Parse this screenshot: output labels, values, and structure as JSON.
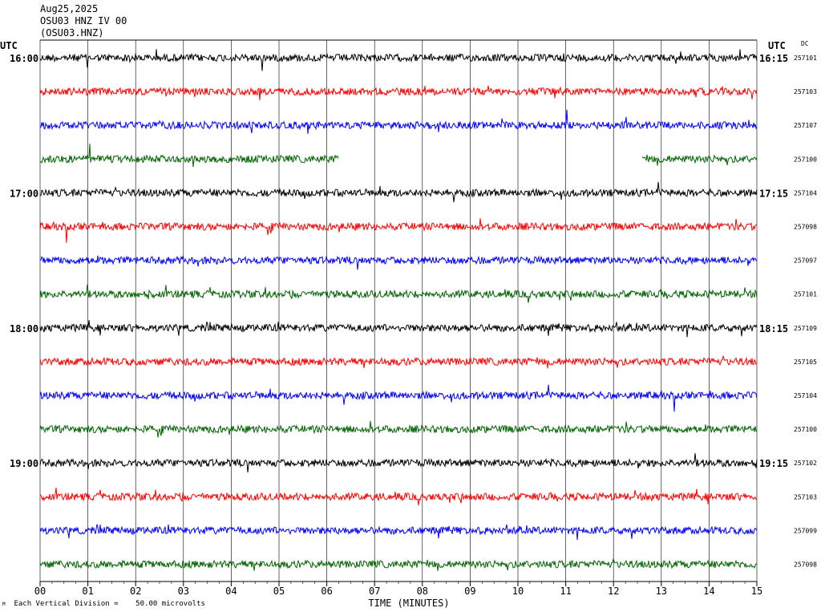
{
  "header": {
    "date": "Aug25,2025",
    "station_line": "OSU03 HNZ IV 00",
    "station_code": "(OSU03.HNZ)"
  },
  "footer": {
    "scale_note": "Each Vertical Division =    50.00 microvolts",
    "corner_mark": "M"
  },
  "chart_data": {
    "type": "line",
    "title": "",
    "xlabel": "TIME (MINUTES)",
    "ylabel": "",
    "left_axis_title": "UTC",
    "right_axis_title": "UTC",
    "dc_header": "DC",
    "x_ticks": [
      "00",
      "01",
      "02",
      "03",
      "04",
      "05",
      "06",
      "07",
      "08",
      "09",
      "10",
      "11",
      "12",
      "13",
      "14",
      "15"
    ],
    "xlim": [
      0,
      15
    ],
    "grid": "vertical",
    "colors": [
      "#000000",
      "#ff0000",
      "#0000ff",
      "#006400"
    ],
    "left_time_labels": [
      "16:00",
      "17:00",
      "18:00",
      "19:00"
    ],
    "right_time_labels": [
      "16:15",
      "17:15",
      "18:15",
      "19:15"
    ],
    "time_label_every": 4,
    "traces": [
      {
        "dc": "257101"
      },
      {
        "dc": "257103"
      },
      {
        "dc": "257107"
      },
      {
        "dc": "257100",
        "gaps": [
          [
            6.25,
            12.6
          ]
        ]
      },
      {
        "dc": "257104"
      },
      {
        "dc": "257098"
      },
      {
        "dc": "257097"
      },
      {
        "dc": "257101"
      },
      {
        "dc": "257109"
      },
      {
        "dc": "257105"
      },
      {
        "dc": "257104"
      },
      {
        "dc": "257100"
      },
      {
        "dc": "257102"
      },
      {
        "dc": "257103"
      },
      {
        "dc": "257099"
      },
      {
        "dc": "257098"
      }
    ]
  }
}
